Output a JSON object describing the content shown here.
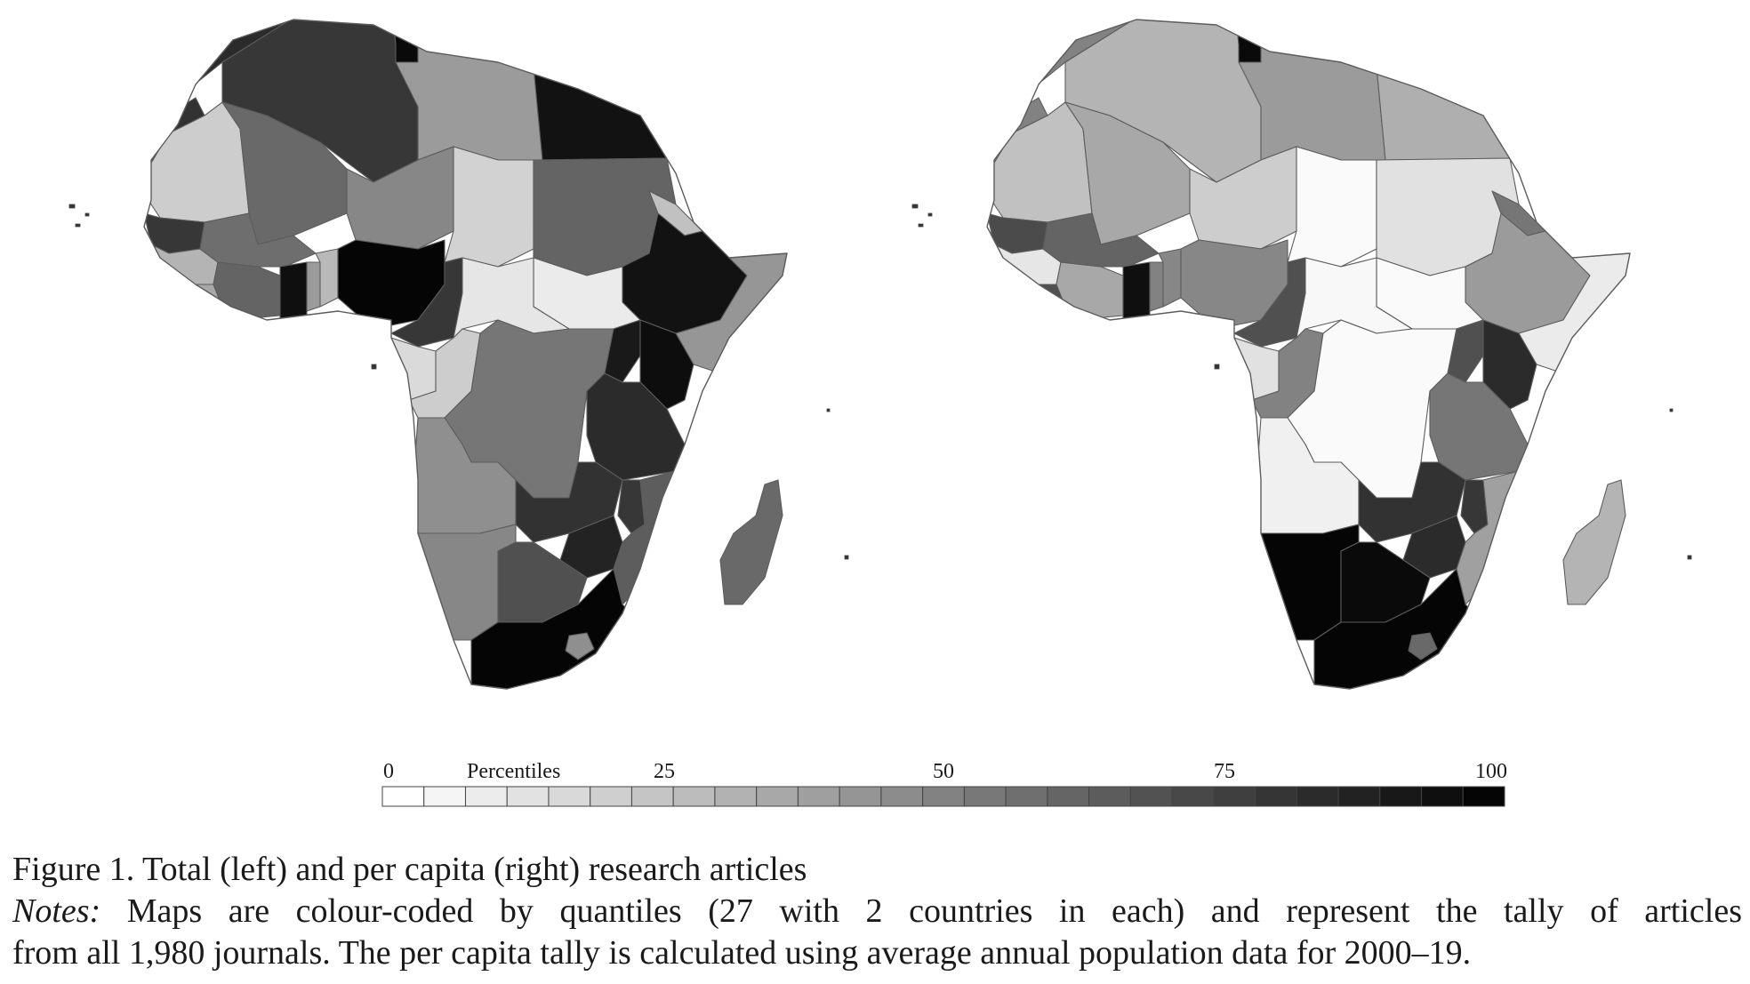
{
  "figure": {
    "title": "Figure 1.  Total (left) and per capita (right) research articles",
    "notes_label": "Notes:",
    "notes_text": "Maps are colour-coded by quantiles (27 with 2 countries in each) and represent the tally of articles",
    "notes_text_2": "from all 1,980 journals. The per capita tally is calculated using average annual population data for 2000–19."
  },
  "legend": {
    "title": "Percentiles",
    "ticks": [
      {
        "label": "0",
        "value": 0
      },
      {
        "label": "25",
        "value": 25
      },
      {
        "label": "50",
        "value": 50
      },
      {
        "label": "75",
        "value": 75
      },
      {
        "label": "100",
        "value": 100
      }
    ],
    "bins": 27,
    "color_light": "#ffffff",
    "color_dark": "#050505"
  },
  "maps": [
    {
      "id": "total",
      "regions": [
        {
          "name": "morocco",
          "percentile": 85
        },
        {
          "name": "algeria",
          "percentile": 80
        },
        {
          "name": "tunisia",
          "percentile": 98
        },
        {
          "name": "libya",
          "percentile": 40
        },
        {
          "name": "egypt",
          "percentile": 95
        },
        {
          "name": "western-sahara",
          "percentile": 82
        },
        {
          "name": "mauritania",
          "percentile": 20
        },
        {
          "name": "mali",
          "percentile": 60
        },
        {
          "name": "niger",
          "percentile": 48
        },
        {
          "name": "chad",
          "percentile": 18
        },
        {
          "name": "sudan",
          "percentile": 62
        },
        {
          "name": "south-sudan",
          "percentile": 8
        },
        {
          "name": "ethiopia",
          "percentile": 95
        },
        {
          "name": "eritrea",
          "percentile": 25
        },
        {
          "name": "somalia",
          "percentile": 42
        },
        {
          "name": "senegal",
          "percentile": 80
        },
        {
          "name": "guinea",
          "percentile": 30
        },
        {
          "name": "sierra-leone",
          "percentile": 35
        },
        {
          "name": "cote-divoire",
          "percentile": 62
        },
        {
          "name": "burkina-faso",
          "percentile": 58
        },
        {
          "name": "ghana",
          "percentile": 96
        },
        {
          "name": "togo",
          "percentile": 40
        },
        {
          "name": "benin",
          "percentile": 28
        },
        {
          "name": "nigeria",
          "percentile": 100
        },
        {
          "name": "cameroon",
          "percentile": 80
        },
        {
          "name": "car",
          "percentile": 10
        },
        {
          "name": "gabon",
          "percentile": 15
        },
        {
          "name": "congo",
          "percentile": 20
        },
        {
          "name": "drc",
          "percentile": 55
        },
        {
          "name": "uganda",
          "percentile": 92
        },
        {
          "name": "kenya",
          "percentile": 97
        },
        {
          "name": "tanzania",
          "percentile": 85
        },
        {
          "name": "angola",
          "percentile": 45
        },
        {
          "name": "zambia",
          "percentile": 82
        },
        {
          "name": "malawi",
          "percentile": 80
        },
        {
          "name": "mozambique",
          "percentile": 65
        },
        {
          "name": "zimbabwe",
          "percentile": 88
        },
        {
          "name": "namibia",
          "percentile": 48
        },
        {
          "name": "botswana",
          "percentile": 70
        },
        {
          "name": "south-africa",
          "percentile": 100
        },
        {
          "name": "madagascar",
          "percentile": 60
        },
        {
          "name": "lesotho",
          "percentile": 45
        }
      ]
    },
    {
      "id": "per-capita",
      "regions": [
        {
          "name": "morocco",
          "percentile": 50
        },
        {
          "name": "algeria",
          "percentile": 30
        },
        {
          "name": "tunisia",
          "percentile": 98
        },
        {
          "name": "libya",
          "percentile": 40
        },
        {
          "name": "egypt",
          "percentile": 32
        },
        {
          "name": "western-sahara",
          "percentile": 50
        },
        {
          "name": "mauritania",
          "percentile": 25
        },
        {
          "name": "mali",
          "percentile": 35
        },
        {
          "name": "niger",
          "percentile": 20
        },
        {
          "name": "chad",
          "percentile": 2
        },
        {
          "name": "sudan",
          "percentile": 12
        },
        {
          "name": "south-sudan",
          "percentile": 2
        },
        {
          "name": "ethiopia",
          "percentile": 40
        },
        {
          "name": "eritrea",
          "percentile": 55
        },
        {
          "name": "somalia",
          "percentile": 8
        },
        {
          "name": "senegal",
          "percentile": 72
        },
        {
          "name": "guinea",
          "percentile": 10
        },
        {
          "name": "sierra-leone",
          "percentile": 70
        },
        {
          "name": "cote-divoire",
          "percentile": 35
        },
        {
          "name": "burkina-faso",
          "percentile": 62
        },
        {
          "name": "ghana",
          "percentile": 96
        },
        {
          "name": "togo",
          "percentile": 50
        },
        {
          "name": "benin",
          "percentile": 48
        },
        {
          "name": "nigeria",
          "percentile": 48
        },
        {
          "name": "cameroon",
          "percentile": 70
        },
        {
          "name": "car",
          "percentile": 3
        },
        {
          "name": "gabon",
          "percentile": 12
        },
        {
          "name": "congo",
          "percentile": 50
        },
        {
          "name": "drc",
          "percentile": 2
        },
        {
          "name": "uganda",
          "percentile": 70
        },
        {
          "name": "kenya",
          "percentile": 85
        },
        {
          "name": "tanzania",
          "percentile": 55
        },
        {
          "name": "angola",
          "percentile": 6
        },
        {
          "name": "zambia",
          "percentile": 82
        },
        {
          "name": "malawi",
          "percentile": 80
        },
        {
          "name": "mozambique",
          "percentile": 38
        },
        {
          "name": "zimbabwe",
          "percentile": 85
        },
        {
          "name": "namibia",
          "percentile": 100
        },
        {
          "name": "botswana",
          "percentile": 98
        },
        {
          "name": "south-africa",
          "percentile": 100
        },
        {
          "name": "madagascar",
          "percentile": 30
        },
        {
          "name": "lesotho",
          "percentile": 60
        }
      ]
    }
  ]
}
